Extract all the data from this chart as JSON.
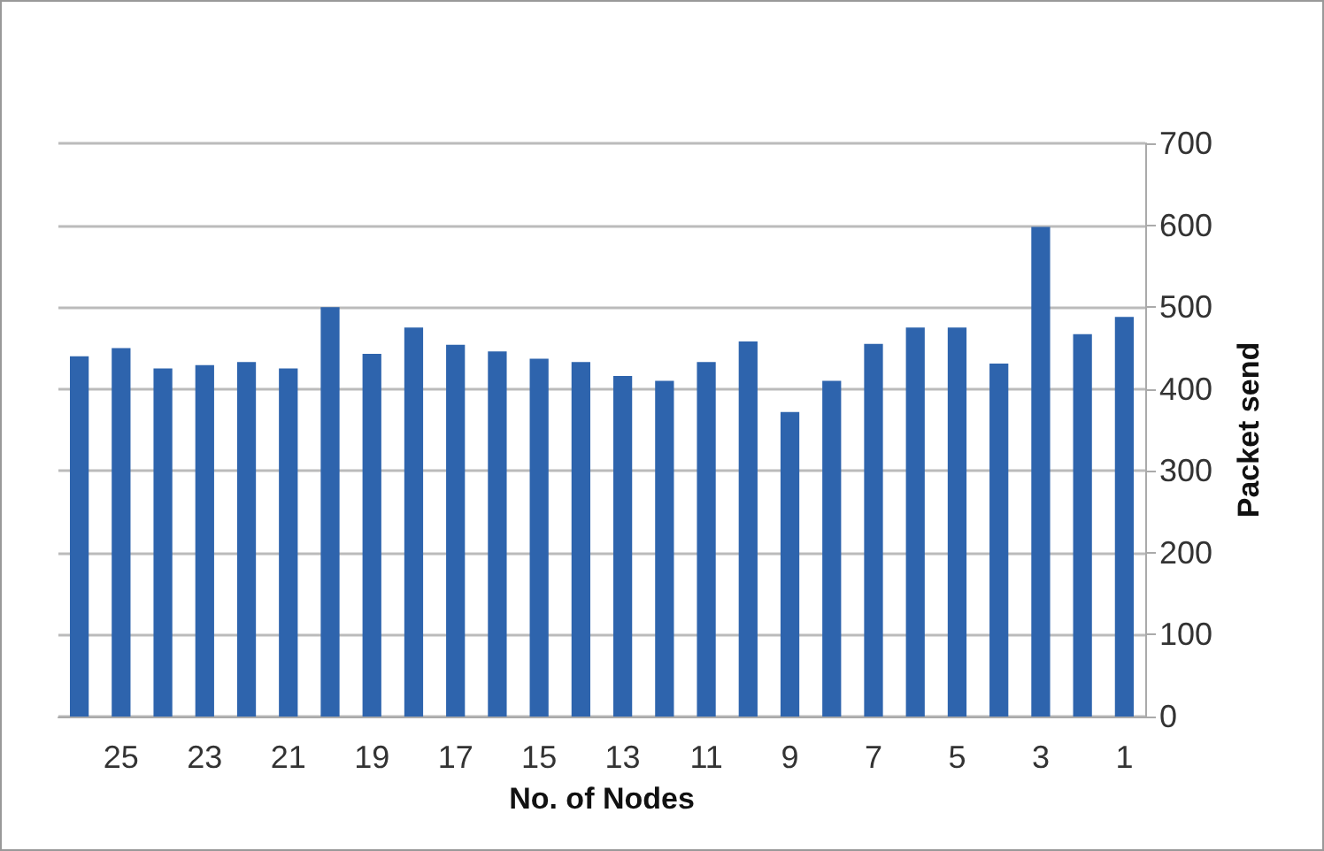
{
  "chart_data": {
    "type": "bar",
    "xlabel": "No. of Nodes",
    "ylabel": "Packet send",
    "categories": [
      null,
      "25",
      null,
      "23",
      null,
      "21",
      null,
      "19",
      null,
      "17",
      null,
      "15",
      null,
      "13",
      null,
      "11",
      null,
      "9",
      null,
      "7",
      null,
      "5",
      null,
      "3",
      null,
      "1"
    ],
    "values": [
      440,
      450,
      425,
      429,
      433,
      425,
      500,
      443,
      475,
      454,
      446,
      437,
      433,
      416,
      410,
      433,
      458,
      372,
      410,
      455,
      475,
      475,
      431,
      598,
      467,
      488
    ],
    "color": "#2e64ad",
    "ylim": [
      0,
      700
    ],
    "yticks": [
      0,
      100,
      200,
      300,
      400,
      500,
      600,
      700
    ],
    "grid": "y"
  }
}
